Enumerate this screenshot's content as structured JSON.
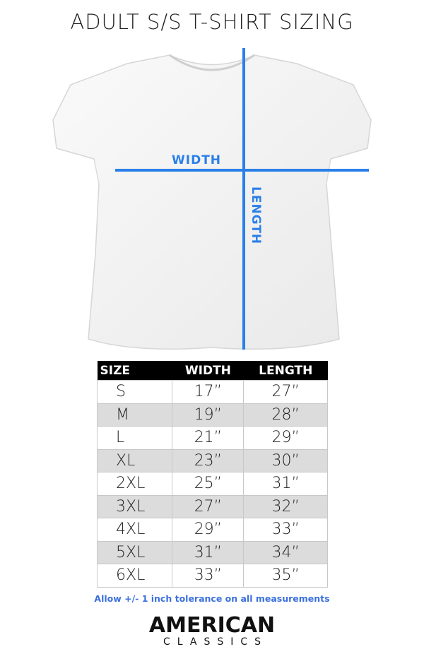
{
  "title": "ADULT S/S T-SHIRT SIZING",
  "diagram": {
    "width_label": "WIDTH",
    "length_label": "LENGTH",
    "line_color": "#2a7fe8"
  },
  "table": {
    "headers": [
      "SIZE",
      "WIDTH",
      "LENGTH"
    ],
    "rows": [
      [
        "S",
        "17”",
        "27”"
      ],
      [
        "M",
        "19”",
        "28”"
      ],
      [
        "L",
        "21”",
        "29”"
      ],
      [
        "XL",
        "23”",
        "30”"
      ],
      [
        "2XL",
        "25”",
        "31”"
      ],
      [
        "3XL",
        "27”",
        "32”"
      ],
      [
        "4XL",
        "29”",
        "33”"
      ],
      [
        "5XL",
        "31”",
        "34”"
      ],
      [
        "6XL",
        "33”",
        "35”"
      ]
    ]
  },
  "note": "Allow +/- 1 inch tolerance on all measurements",
  "logo": {
    "line1": "AMERICAN",
    "line2": "CLASSICS"
  }
}
